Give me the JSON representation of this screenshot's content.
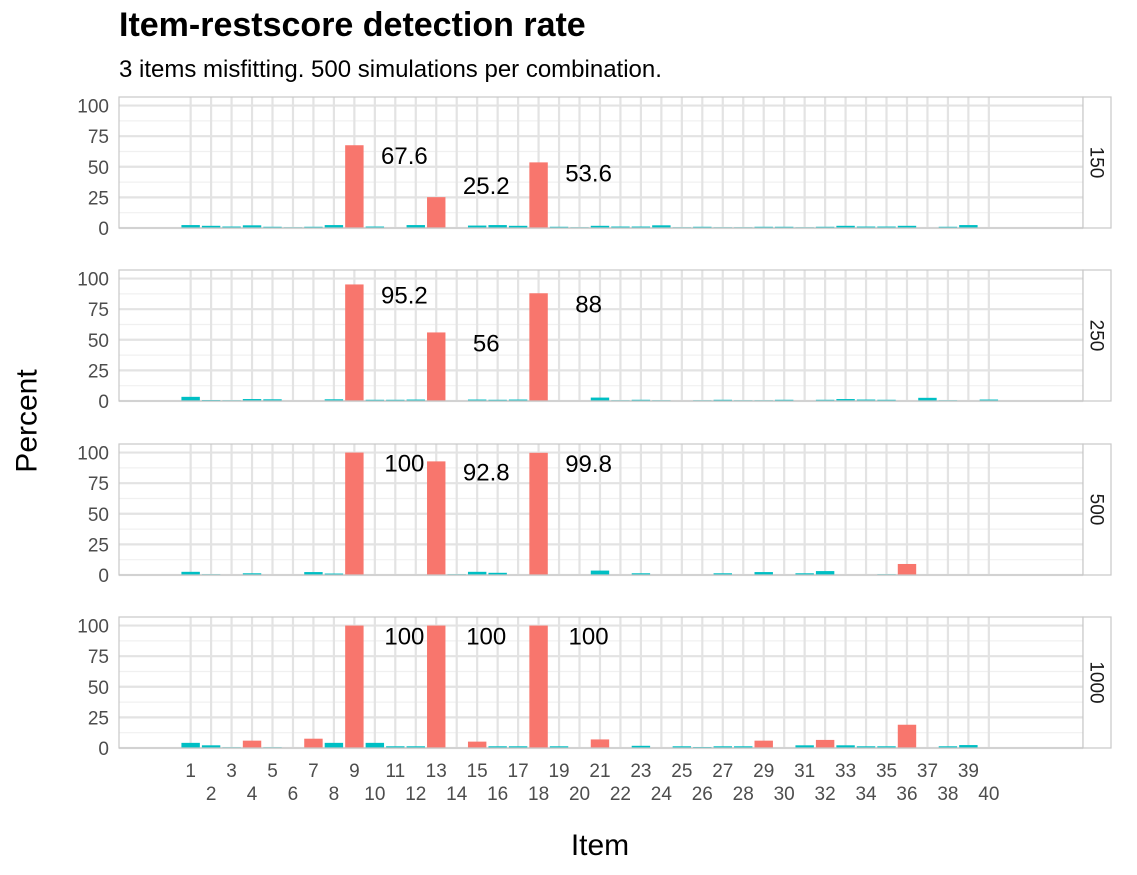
{
  "chart_data": {
    "type": "bar",
    "title": "Item-restscore detection rate",
    "subtitle": "3 items misfitting. 500 simulations per combination.",
    "xlabel": "Item",
    "ylabel": "Percent",
    "x": [
      1,
      2,
      3,
      4,
      5,
      6,
      7,
      8,
      9,
      10,
      11,
      12,
      13,
      14,
      15,
      16,
      17,
      18,
      19,
      20,
      21,
      22,
      23,
      24,
      25,
      26,
      27,
      28,
      29,
      30,
      31,
      32,
      33,
      34,
      35,
      36,
      37,
      38,
      39,
      40
    ],
    "x_tick_labels": [
      "1",
      "2",
      "3",
      "4",
      "5",
      "6",
      "7",
      "8",
      "9",
      "10",
      "11",
      "12",
      "13",
      "14",
      "15",
      "16",
      "17",
      "18",
      "19",
      "20",
      "21",
      "22",
      "23",
      "24",
      "25",
      "26",
      "27",
      "28",
      "29",
      "30",
      "31",
      "32",
      "33",
      "34",
      "35",
      "36",
      "37",
      "38",
      "39",
      "40"
    ],
    "y_ticks": [
      0,
      25,
      50,
      75,
      100
    ],
    "ylim": [
      0,
      107
    ],
    "grid": true,
    "legend": "none",
    "colors": {
      "misfit": "#F8766D",
      "fit": "#00BFC4"
    },
    "panels": [
      {
        "strip": "150",
        "values": [
          2.4,
          1.8,
          1.2,
          2.2,
          1,
          0.6,
          1,
          2.4,
          67.6,
          1.2,
          0.4,
          2.4,
          25.2,
          0,
          2,
          2.4,
          1.8,
          53.6,
          1,
          0.6,
          1.8,
          1.2,
          1.2,
          2.2,
          0.6,
          1,
          0.6,
          0.6,
          1,
          1,
          0.6,
          1,
          1.8,
          1.2,
          1.2,
          1.8,
          0.4,
          1,
          2.4,
          0
        ],
        "misfit": [
          9,
          13,
          18
        ],
        "labels": [
          {
            "item": 9,
            "text": "67.6"
          },
          {
            "item": 13,
            "text": "25.2"
          },
          {
            "item": 18,
            "text": "53.6"
          }
        ]
      },
      {
        "strip": "250",
        "values": [
          3.4,
          0.8,
          0.6,
          1.6,
          1.4,
          0,
          0.4,
          1.4,
          95.2,
          1,
          1,
          1.2,
          56,
          0.4,
          1.2,
          1,
          1.2,
          88,
          0.4,
          0.4,
          2.8,
          0.6,
          1,
          0.6,
          0.4,
          0.6,
          1,
          0.6,
          0.6,
          1,
          0.4,
          1,
          1.6,
          1.2,
          1,
          0.4,
          2.6,
          0.6,
          0.4,
          1.2
        ],
        "misfit": [
          9,
          13,
          18
        ],
        "labels": [
          {
            "item": 9,
            "text": "95.2"
          },
          {
            "item": 13,
            "text": "56"
          },
          {
            "item": 18,
            "text": "88"
          }
        ]
      },
      {
        "strip": "500",
        "values": [
          2.6,
          0.6,
          0.4,
          1.4,
          0.4,
          0.2,
          2.4,
          1.2,
          100,
          0.4,
          0.4,
          0.4,
          92.8,
          0.6,
          2.6,
          1.8,
          0.2,
          99.8,
          0.2,
          0.4,
          3.6,
          0,
          1.4,
          0.2,
          0.4,
          0.2,
          1.4,
          0,
          2.4,
          0.4,
          1.4,
          3.2,
          0.4,
          0.2,
          0.6,
          9,
          0.2,
          0.4,
          0.4,
          0
        ],
        "misfit": [
          9,
          13,
          18,
          36
        ],
        "labels": [
          {
            "item": 9,
            "text": "100"
          },
          {
            "item": 13,
            "text": "92.8"
          },
          {
            "item": 18,
            "text": "99.8"
          }
        ]
      },
      {
        "strip": "1000",
        "values": [
          4.2,
          2.2,
          0.6,
          6,
          0.6,
          0.4,
          7.6,
          4.2,
          100,
          4.2,
          1.4,
          1.4,
          100,
          0,
          5.2,
          1.4,
          1.4,
          100,
          1.4,
          0,
          7,
          0.4,
          1.8,
          0.4,
          1.4,
          0.8,
          1.4,
          1.4,
          6,
          0,
          2.2,
          6.6,
          2.2,
          1.4,
          1.4,
          19,
          0.4,
          1.4,
          2.4,
          0
        ],
        "misfit": [
          4,
          7,
          9,
          13,
          15,
          18,
          21,
          29,
          32,
          36
        ],
        "labels": [
          {
            "item": 9,
            "text": "100"
          },
          {
            "item": 13,
            "text": "100"
          },
          {
            "item": 18,
            "text": "100"
          }
        ]
      }
    ]
  }
}
